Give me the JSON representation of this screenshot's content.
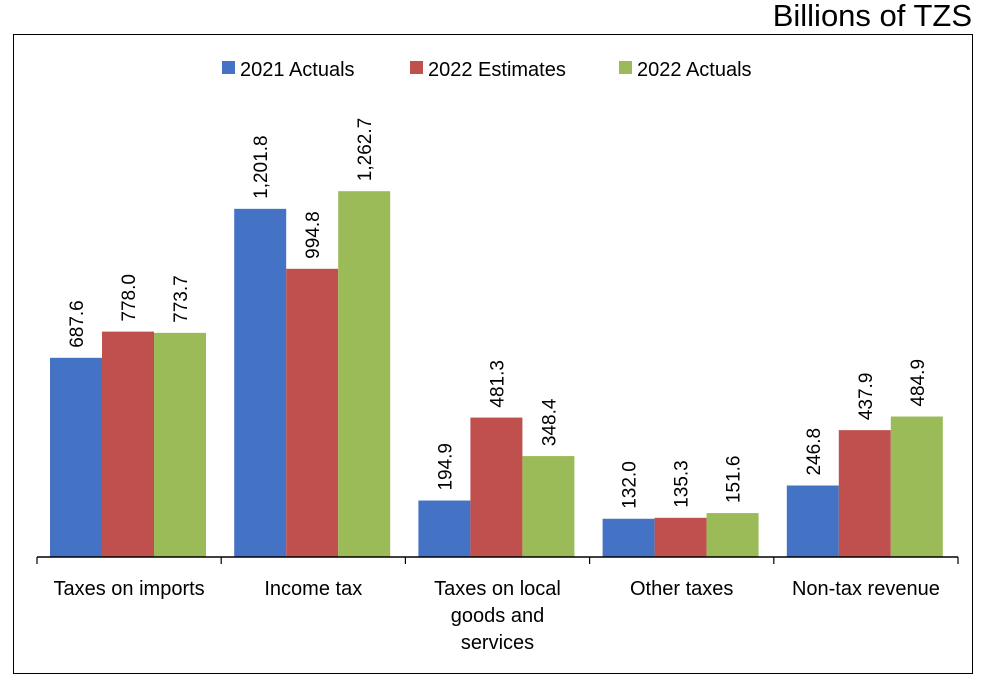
{
  "unit_label": "Billions of TZS",
  "chart_data": {
    "type": "bar",
    "title": "",
    "xlabel": "",
    "ylabel": "",
    "categories": [
      [
        "Taxes on imports"
      ],
      [
        "Income tax"
      ],
      [
        "Taxes on local",
        "goods and",
        "services"
      ],
      [
        "Other taxes"
      ],
      [
        "Non-tax revenue"
      ]
    ],
    "series": [
      {
        "name": "2021 Actuals",
        "color": "#4472C4",
        "values": [
          687.6,
          1201.8,
          194.9,
          132.0,
          246.8
        ],
        "labels": [
          "687.6",
          "1,201.8",
          "194.9",
          "132.0",
          "246.8"
        ]
      },
      {
        "name": "2022 Estimates",
        "color": "#C0504D",
        "values": [
          778.0,
          994.8,
          481.3,
          135.3,
          437.9
        ],
        "labels": [
          "778.0",
          "994.8",
          "481.3",
          "135.3",
          "437.9"
        ]
      },
      {
        "name": "2022 Actuals",
        "color": "#9BBB59",
        "values": [
          773.7,
          1262.7,
          348.4,
          151.6,
          484.9
        ],
        "labels": [
          "773.7",
          "1,262.7",
          "348.4",
          "151.6",
          "484.9"
        ]
      }
    ],
    "ylim": [
      0,
      1350
    ],
    "grid": false,
    "legend": "top-center"
  }
}
